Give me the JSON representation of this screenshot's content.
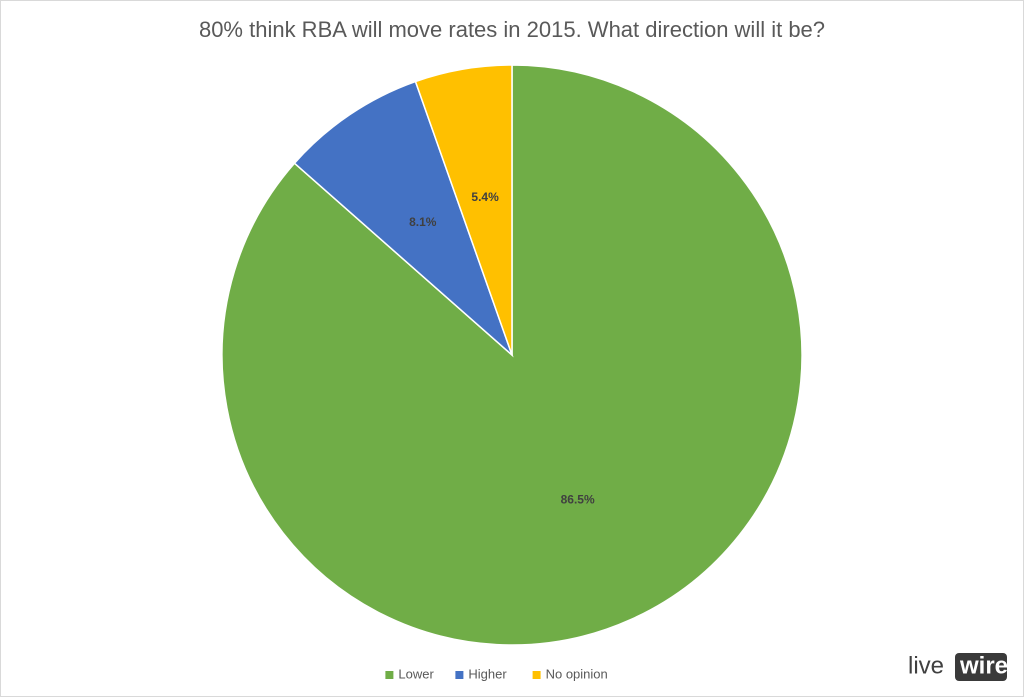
{
  "chart_data": {
    "type": "pie",
    "title": "80% think RBA will move rates in 2015. What direction will it be?",
    "categories": [
      "Lower",
      "Higher",
      "No opinion"
    ],
    "values": [
      86.5,
      8.1,
      5.4
    ],
    "value_labels": [
      "86.5%",
      "8.1%",
      "5.4%"
    ],
    "colors": [
      "#70ad47",
      "#4472c4",
      "#ffc000"
    ],
    "legend": "bottom"
  },
  "logo": {
    "left": "live",
    "right": "wire"
  }
}
